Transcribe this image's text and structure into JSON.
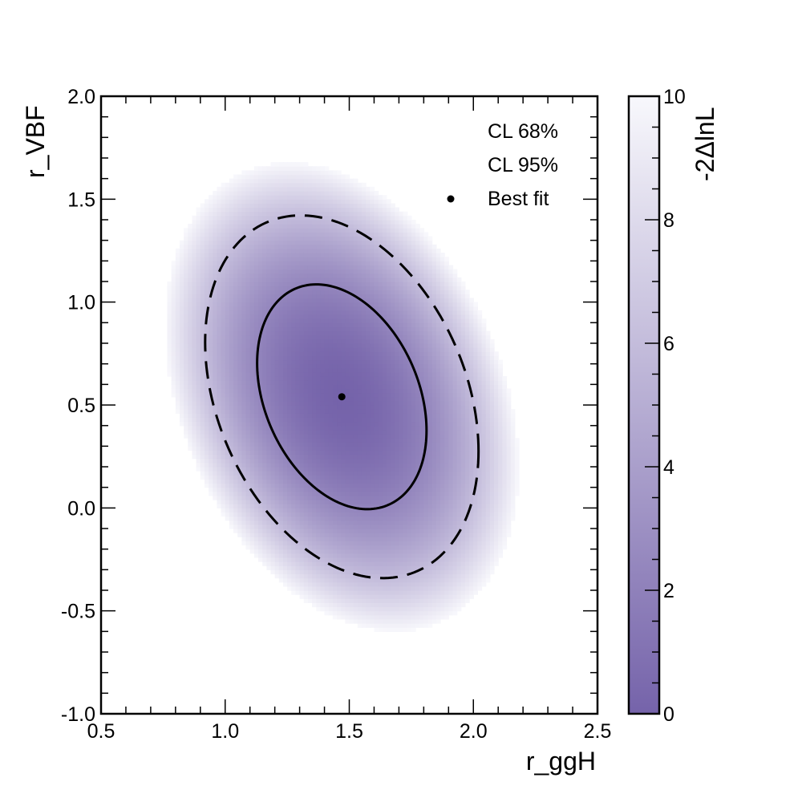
{
  "chart_data": {
    "type": "heatmap",
    "xlabel": "r_ggH",
    "ylabel": "r_VBF",
    "colorbar_label": "-2ΔlnL",
    "xlim": [
      0.5,
      2.5
    ],
    "ylim": [
      -1.0,
      2.0
    ],
    "zlim": [
      0,
      10
    ],
    "x_ticks": [
      0.5,
      1.0,
      1.5,
      2.0,
      2.5
    ],
    "x_tick_labels": [
      "0.5",
      "1.0",
      "1.5",
      "2.0",
      "2.5"
    ],
    "y_ticks": [
      -1.0,
      -0.5,
      0.0,
      0.5,
      1.0,
      1.5,
      2.0
    ],
    "y_tick_labels": [
      "-1.0",
      "-0.5",
      "0.0",
      "0.5",
      "1.0",
      "1.5",
      "2.0"
    ],
    "z_ticks": [
      0,
      2,
      4,
      6,
      8,
      10
    ],
    "z_tick_labels": [
      "0",
      "2",
      "4",
      "6",
      "8",
      "10"
    ],
    "best_fit": {
      "x": 1.47,
      "y": 0.54
    },
    "likelihood_model": {
      "sigma_x": 0.225,
      "sigma_y": 0.36,
      "rho": -0.3
    },
    "contours": [
      {
        "name": "CL 68%",
        "level": 2.3,
        "style": "solid"
      },
      {
        "name": "CL 95%",
        "level": 5.99,
        "style": "dashed"
      }
    ],
    "colors": {
      "min": "#7563aa",
      "max": "#f8f8fc",
      "contour": "#000000",
      "background": "#ffffff"
    },
    "legend": {
      "position": "top-right",
      "entries": [
        "CL 68%",
        "CL 95%",
        "Best fit"
      ]
    }
  }
}
